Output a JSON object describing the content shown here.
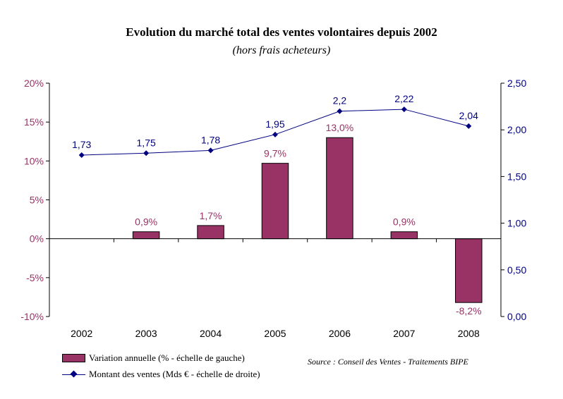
{
  "chart_data": {
    "type": "bar",
    "title": "Evolution du marché total des ventes volontaires depuis 2002",
    "subtitle": "(hors frais acheteurs)",
    "categories": [
      "2002",
      "2003",
      "2004",
      "2005",
      "2006",
      "2007",
      "2008"
    ],
    "series": [
      {
        "name": "Variation annuelle (% - échelle de gauche)",
        "type": "bar",
        "axis": "left",
        "values": [
          null,
          0.9,
          1.7,
          9.7,
          13.0,
          0.9,
          -8.2
        ],
        "labels": [
          "",
          "0,9%",
          "1,7%",
          "9,7%",
          "13,0%",
          "0,9%",
          "-8,2%"
        ],
        "color": "#993366"
      },
      {
        "name": "Montant des ventes (Mds € - échelle de droite)",
        "type": "line",
        "axis": "right",
        "values": [
          1.73,
          1.75,
          1.78,
          1.95,
          2.2,
          2.22,
          2.04
        ],
        "labels": [
          "1,73",
          "1,75",
          "1,78",
          "1,95",
          "2,2",
          "2,22",
          "2,04"
        ],
        "color": "#000080"
      }
    ],
    "y_left": {
      "ylim": [
        -10,
        20
      ],
      "ticks": [
        20,
        15,
        10,
        5,
        0,
        -5,
        -10
      ],
      "tick_labels": [
        "20%",
        "15%",
        "10%",
        "5%",
        "0%",
        "-5%",
        "-10%"
      ],
      "color": "#993366"
    },
    "y_right": {
      "ylim": [
        0,
        2.5
      ],
      "ticks": [
        2.5,
        2.0,
        1.5,
        1.0,
        0.5,
        0.0
      ],
      "tick_labels": [
        "2,50",
        "2,00",
        "1,50",
        "1,00",
        "0,50",
        "0,00"
      ],
      "color": "#000080"
    },
    "grid": false,
    "legend_position": "bottom-left",
    "source": "Source : Conseil des Ventes - Traitements BIPE"
  }
}
